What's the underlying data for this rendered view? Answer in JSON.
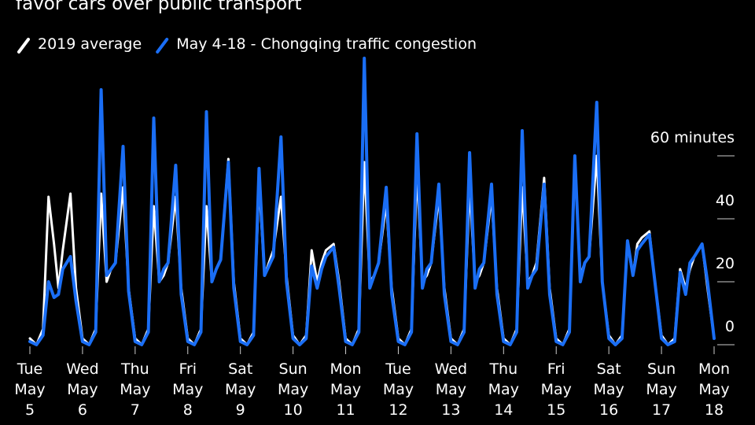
{
  "chart_data": {
    "type": "line",
    "title": "favor cars over public transport",
    "legend": "top-left",
    "xlim": [
      0,
      312
    ],
    "xticks": [
      {
        "value": 0,
        "label": "Tue\nMay\n5"
      },
      {
        "value": 24,
        "label": "Wed\nMay\n6"
      },
      {
        "value": 48,
        "label": "Thu\nMay\n7"
      },
      {
        "value": 72,
        "label": "Fri\nMay\n8"
      },
      {
        "value": 96,
        "label": "Sat\nMay\n9"
      },
      {
        "value": 120,
        "label": "Sun\nMay\n10"
      },
      {
        "value": 144,
        "label": "Mon\nMay\n11"
      },
      {
        "value": 168,
        "label": "Tue\nMay\n12"
      },
      {
        "value": 192,
        "label": "Wed\nMay\n13"
      },
      {
        "value": 216,
        "label": "Thu\nMay\n14"
      },
      {
        "value": 240,
        "label": "Fri\nMay\n15"
      },
      {
        "value": 264,
        "label": "Sat\nMay\n16"
      },
      {
        "value": 288,
        "label": "Sun\nMay\n17"
      },
      {
        "value": 312,
        "label": "Mon\nMay\n18"
      }
    ],
    "ylim": [
      0,
      95
    ],
    "yticks": [
      {
        "value": 60,
        "label": "60 minutes"
      },
      40,
      20,
      0
    ],
    "x": [
      0,
      3,
      6,
      8.5,
      11,
      13,
      15,
      18.5,
      21,
      24,
      27,
      30,
      32.5,
      35,
      37,
      39,
      42.5,
      45,
      48,
      51,
      54,
      56.5,
      59,
      61,
      63,
      66.5,
      69,
      72,
      75,
      78,
      80.5,
      83,
      85,
      87,
      90.5,
      93,
      96,
      99,
      102,
      104.5,
      107,
      109,
      111,
      114.5,
      117,
      120,
      123,
      126,
      128.5,
      131,
      133,
      135,
      138.5,
      141,
      144,
      147,
      150,
      152.5,
      155,
      157,
      159,
      162.5,
      165,
      168,
      171,
      174,
      176.5,
      179,
      181,
      183,
      186.5,
      189,
      192,
      195,
      198,
      200.5,
      203,
      205,
      207,
      210.5,
      213,
      216,
      219,
      222,
      224.5,
      227,
      229,
      231,
      234.5,
      237,
      240,
      243,
      246,
      248.5,
      251,
      253,
      255,
      258.5,
      261,
      264,
      267,
      270,
      272.5,
      275,
      277,
      279,
      282.5,
      285,
      288,
      291,
      294,
      296.5,
      299,
      301,
      303,
      306.5,
      309,
      312
    ],
    "series": [
      {
        "name": "2019 average",
        "color": "#ffffff",
        "values": [
          2,
          0,
          5,
          47,
          32,
          18,
          30,
          48,
          18,
          2,
          0,
          5,
          48,
          20,
          24,
          26,
          50,
          18,
          2,
          0,
          5,
          44,
          20,
          22,
          26,
          47,
          18,
          2,
          0,
          5,
          44,
          20,
          24,
          27,
          59,
          20,
          2,
          0,
          4,
          51,
          22,
          26,
          30,
          47,
          22,
          3,
          0,
          3,
          30,
          20,
          26,
          30,
          32,
          20,
          2,
          0,
          5,
          58,
          20,
          22,
          26,
          45,
          18,
          2,
          0,
          5,
          55,
          20,
          22,
          26,
          47,
          18,
          2,
          0,
          5,
          50,
          20,
          22,
          26,
          47,
          18,
          2,
          0,
          5,
          50,
          20,
          22,
          26,
          53,
          18,
          2,
          0,
          5,
          57,
          22,
          26,
          28,
          60,
          20,
          3,
          0,
          3,
          32,
          22,
          32,
          34,
          36,
          20,
          3,
          0,
          2,
          24,
          18,
          24,
          28,
          32,
          18,
          2
        ]
      },
      {
        "name": "May 4-18 - Chongqing traffic congestion",
        "color": "#1a6ef5",
        "values": [
          1,
          0,
          3,
          20,
          15,
          16,
          24,
          28,
          14,
          1,
          0,
          4,
          81,
          22,
          24,
          26,
          63,
          17,
          1,
          0,
          4,
          72,
          20,
          24,
          26,
          57,
          16,
          1,
          0,
          4,
          74,
          20,
          24,
          27,
          58,
          18,
          1,
          0,
          3,
          56,
          22,
          25,
          28,
          66,
          20,
          2,
          0,
          2,
          25,
          18,
          24,
          28,
          31,
          18,
          1,
          0,
          4,
          91,
          18,
          22,
          26,
          50,
          16,
          1,
          0,
          4,
          67,
          18,
          24,
          26,
          51,
          16,
          1,
          0,
          4,
          61,
          18,
          24,
          26,
          51,
          16,
          1,
          0,
          4,
          68,
          18,
          22,
          24,
          51,
          16,
          1,
          0,
          4,
          60,
          20,
          26,
          28,
          77,
          20,
          2,
          0,
          2,
          33,
          22,
          30,
          32,
          35,
          20,
          2,
          0,
          1,
          23,
          16,
          26,
          28,
          32,
          20,
          2
        ]
      }
    ]
  }
}
